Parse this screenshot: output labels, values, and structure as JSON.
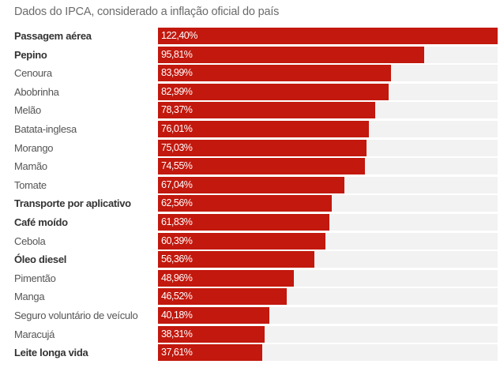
{
  "subtitle": "Dados do IPCA, considerado a inflação oficial do país",
  "chart_data": {
    "type": "bar",
    "orientation": "horizontal",
    "title": "",
    "subtitle": "Dados do IPCA, considerado a inflação oficial do país",
    "xlabel": "",
    "ylabel": "",
    "xlim": [
      0,
      122.4
    ],
    "grid": false,
    "legend": null,
    "bar_color": "#c2180d",
    "track_color": "#f2f2f2",
    "categories": [
      "Passagem aérea",
      "Pepino",
      "Cenoura",
      "Abobrinha",
      "Melão",
      "Batata-inglesa",
      "Morango",
      "Mamão",
      "Tomate",
      "Transporte por aplicativo",
      "Café moído",
      "Cebola",
      "Óleo diesel",
      "Pimentão",
      "Manga",
      "Seguro voluntário de veículo",
      "Maracujá",
      "Leite longa vida"
    ],
    "values": [
      122.4,
      95.81,
      83.99,
      82.99,
      78.37,
      76.01,
      75.03,
      74.55,
      67.04,
      62.56,
      61.83,
      60.39,
      56.36,
      48.96,
      46.52,
      40.18,
      38.31,
      37.61
    ],
    "value_labels": [
      "122,40%",
      "95,81%",
      "83,99%",
      "82,99%",
      "78,37%",
      "76,01%",
      "75,03%",
      "74,55%",
      "67,04%",
      "62,56%",
      "61,83%",
      "60,39%",
      "56,36%",
      "48,96%",
      "46,52%",
      "40,18%",
      "38,31%",
      "37,61%"
    ],
    "bold_categories": [
      true,
      true,
      false,
      false,
      false,
      false,
      false,
      false,
      false,
      true,
      true,
      false,
      true,
      false,
      false,
      false,
      false,
      true
    ]
  }
}
